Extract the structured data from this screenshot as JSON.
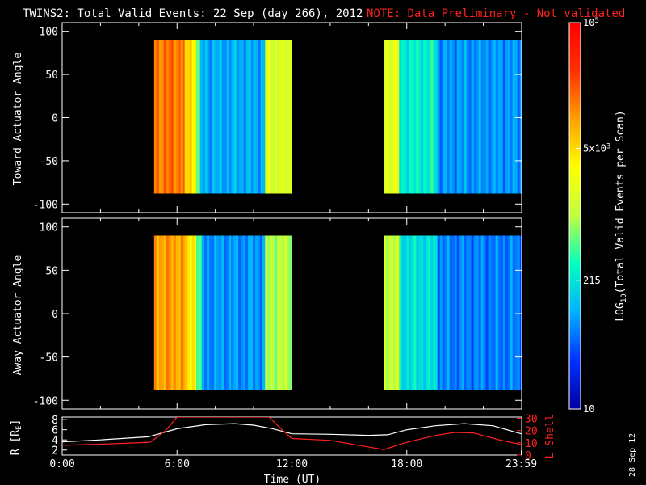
{
  "header": {
    "title": "TWINS2: Total Valid Events: 22 Sep (day 266), 2012",
    "note": "NOTE: Data Preliminary - Not validated",
    "note_color": "#ff2020"
  },
  "footer": {
    "date_stamp": "28 Sep 12"
  },
  "colorbar": {
    "label": "LOG10(Total Valid Events per Scan)",
    "label_main": "LOG",
    "label_sub": "10",
    "label_rest": "(Total Valid Events per Scan)",
    "ticks": [
      "10",
      "215",
      "5x10",
      "10"
    ],
    "tick_sups": [
      "",
      "",
      "3",
      "5"
    ],
    "tick_values": [
      10,
      215,
      5000,
      100000
    ],
    "range": [
      10,
      100000
    ],
    "scale": "log",
    "colormap": [
      "#0000a0",
      "#0030ff",
      "#00b0ff",
      "#00ffc0",
      "#c0ff40",
      "#ffff00",
      "#ffa000",
      "#ff3000",
      "#ff0000"
    ]
  },
  "chart_data": [
    {
      "type": "heatmap",
      "panel": "toward",
      "ylabel": "Toward Actuator Angle",
      "ylim": [
        -110,
        110
      ],
      "yticks": [
        100,
        50,
        0,
        -50,
        -100
      ],
      "data_y_range": [
        -88,
        90
      ],
      "xlim": [
        0,
        24
      ],
      "data_x_ranges": [
        [
          4.8,
          12.0
        ],
        [
          16.8,
          23.98
        ]
      ],
      "approx_log_level_profile": [
        {
          "x_range": [
            4.8,
            6.4
          ],
          "log10": 4.2
        },
        {
          "x_range": [
            6.4,
            7.0
          ],
          "log10": 3.7
        },
        {
          "x_range": [
            7.0,
            7.2
          ],
          "log10": 2.8
        },
        {
          "x_range": [
            7.2,
            10.6
          ],
          "log10": 2.0
        },
        {
          "x_range": [
            10.6,
            12.0
          ],
          "log10": 3.2
        },
        {
          "x_range": [
            16.8,
            17.6
          ],
          "log10": 3.3
        },
        {
          "x_range": [
            17.6,
            19.6
          ],
          "log10": 2.4
        },
        {
          "x_range": [
            19.6,
            23.98
          ],
          "log10": 1.9
        }
      ]
    },
    {
      "type": "heatmap",
      "panel": "away",
      "ylabel": "Away Actuator Angle",
      "ylim": [
        -110,
        110
      ],
      "yticks": [
        100,
        50,
        0,
        -50,
        -100
      ],
      "data_y_range": [
        -88,
        90
      ],
      "xlim": [
        0,
        24
      ],
      "data_x_ranges": [
        [
          4.8,
          12.0
        ],
        [
          16.8,
          23.98
        ]
      ],
      "approx_log_level_profile": [
        {
          "x_range": [
            4.8,
            6.4
          ],
          "log10": 4.0
        },
        {
          "x_range": [
            6.4,
            7.0
          ],
          "log10": 3.6
        },
        {
          "x_range": [
            7.0,
            7.3
          ],
          "log10": 2.6
        },
        {
          "x_range": [
            7.3,
            10.6
          ],
          "log10": 1.9
        },
        {
          "x_range": [
            10.6,
            12.0
          ],
          "log10": 3.0
        },
        {
          "x_range": [
            16.8,
            17.6
          ],
          "log10": 3.1
        },
        {
          "x_range": [
            17.6,
            19.6
          ],
          "log10": 2.3
        },
        {
          "x_range": [
            19.6,
            23.98
          ],
          "log10": 1.8
        }
      ]
    },
    {
      "type": "line",
      "panel": "orbit",
      "ylabel": "R [RE]",
      "ylabel_main": "R [R",
      "ylabel_sub": "E",
      "ylabel_end": "]",
      "ylim": [
        1,
        8.5
      ],
      "yticks": [
        "8",
        "6",
        "4",
        "2"
      ],
      "ytick_values": [
        8,
        6,
        4,
        2
      ],
      "y2label": "L Shell",
      "y2lim": [
        0,
        31
      ],
      "y2ticks": [
        "30",
        "20",
        "10",
        "0"
      ],
      "y2tick_values": [
        30,
        20,
        10,
        0
      ],
      "xlabel": "Time (UT)",
      "xticks": [
        "0:00",
        "6:00",
        "12:00",
        "18:00",
        "23:59"
      ],
      "xtick_values": [
        0,
        6,
        12,
        18,
        23.98
      ],
      "xlim": [
        0,
        24
      ],
      "series": [
        {
          "axis": "left",
          "color": "#ffffff",
          "x": [
            0,
            2,
            4.5,
            6,
            7.5,
            9,
            10,
            11,
            12,
            14,
            16,
            17,
            18,
            19.5,
            21,
            22.5,
            23.98
          ],
          "y": [
            3.6,
            4.0,
            4.6,
            6.2,
            7.0,
            7.2,
            6.9,
            6.2,
            5.2,
            5.1,
            4.9,
            5.0,
            6.0,
            6.8,
            7.2,
            6.8,
            5.2
          ]
        },
        {
          "axis": "right",
          "color": "#ff2020",
          "x": [
            0,
            2.5,
            4.6,
            5.4,
            6.0,
            10.8,
            11.6,
            12.0,
            14,
            16.8,
            18,
            19.5,
            20.5,
            21.5,
            22.8,
            23.98
          ],
          "y": [
            8.0,
            9.2,
            10.5,
            20.0,
            31.0,
            31.0,
            19.0,
            13.5,
            12.0,
            4.5,
            10.5,
            16.0,
            18.5,
            18.0,
            12.5,
            8.5
          ]
        }
      ]
    }
  ]
}
